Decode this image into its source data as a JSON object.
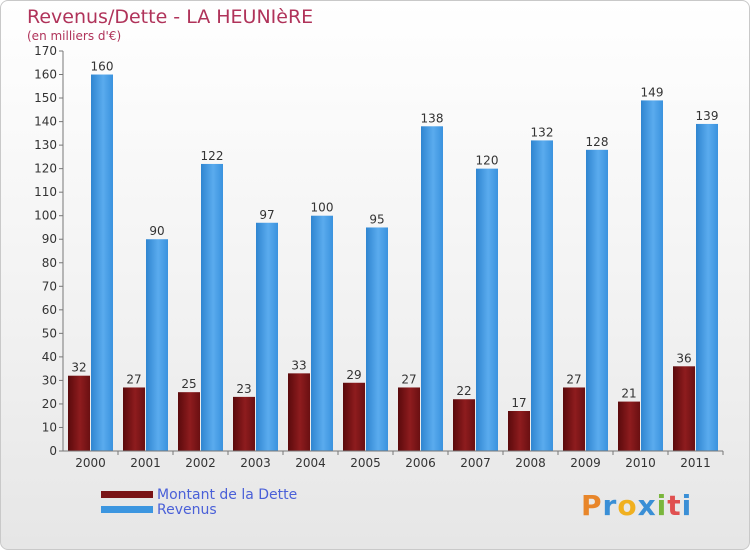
{
  "header": {
    "title": "Revenus/Dette - LA HEUNIèRE",
    "subtitle": "(en milliers d'€)"
  },
  "colors": {
    "title": "#b0335a",
    "debt": "#7a1416",
    "revenue": "#3c96e0",
    "axis_text": "#333333",
    "legend_text": "#4a60d8"
  },
  "chart_data": {
    "type": "bar",
    "categories": [
      "2000",
      "2001",
      "2002",
      "2003",
      "2004",
      "2005",
      "2006",
      "2007",
      "2008",
      "2009",
      "2010",
      "2011"
    ],
    "series": [
      {
        "name": "Montant de la Dette",
        "color": "#7a1416",
        "values": [
          32,
          27,
          25,
          23,
          33,
          29,
          27,
          22,
          17,
          27,
          21,
          36
        ]
      },
      {
        "name": "Revenus",
        "color": "#3c96e0",
        "values": [
          160,
          90,
          122,
          97,
          100,
          95,
          138,
          120,
          132,
          128,
          149,
          139
        ]
      }
    ],
    "title": "Revenus/Dette - LA HEUNIèRE",
    "ylabel": "(en milliers d'€)",
    "ylim": [
      0,
      170
    ],
    "yticks": [
      0,
      10,
      20,
      30,
      40,
      50,
      60,
      70,
      80,
      90,
      100,
      110,
      120,
      130,
      140,
      150,
      160,
      170
    ],
    "grid": false,
    "legend": "bottom-left",
    "data_labels": true
  },
  "legend": {
    "items": [
      {
        "label": "Montant de la Dette",
        "color": "#7a1416"
      },
      {
        "label": "Revenus",
        "color": "#3c96e0"
      }
    ]
  },
  "logo": {
    "letters": [
      "P",
      "r",
      "o",
      "x",
      "i",
      "t",
      "i"
    ],
    "colors": [
      "#e8862a",
      "#3a8fd6",
      "#f0b020",
      "#3a8fd6",
      "#7ab63c",
      "#e05050",
      "#3a8fd6"
    ]
  }
}
